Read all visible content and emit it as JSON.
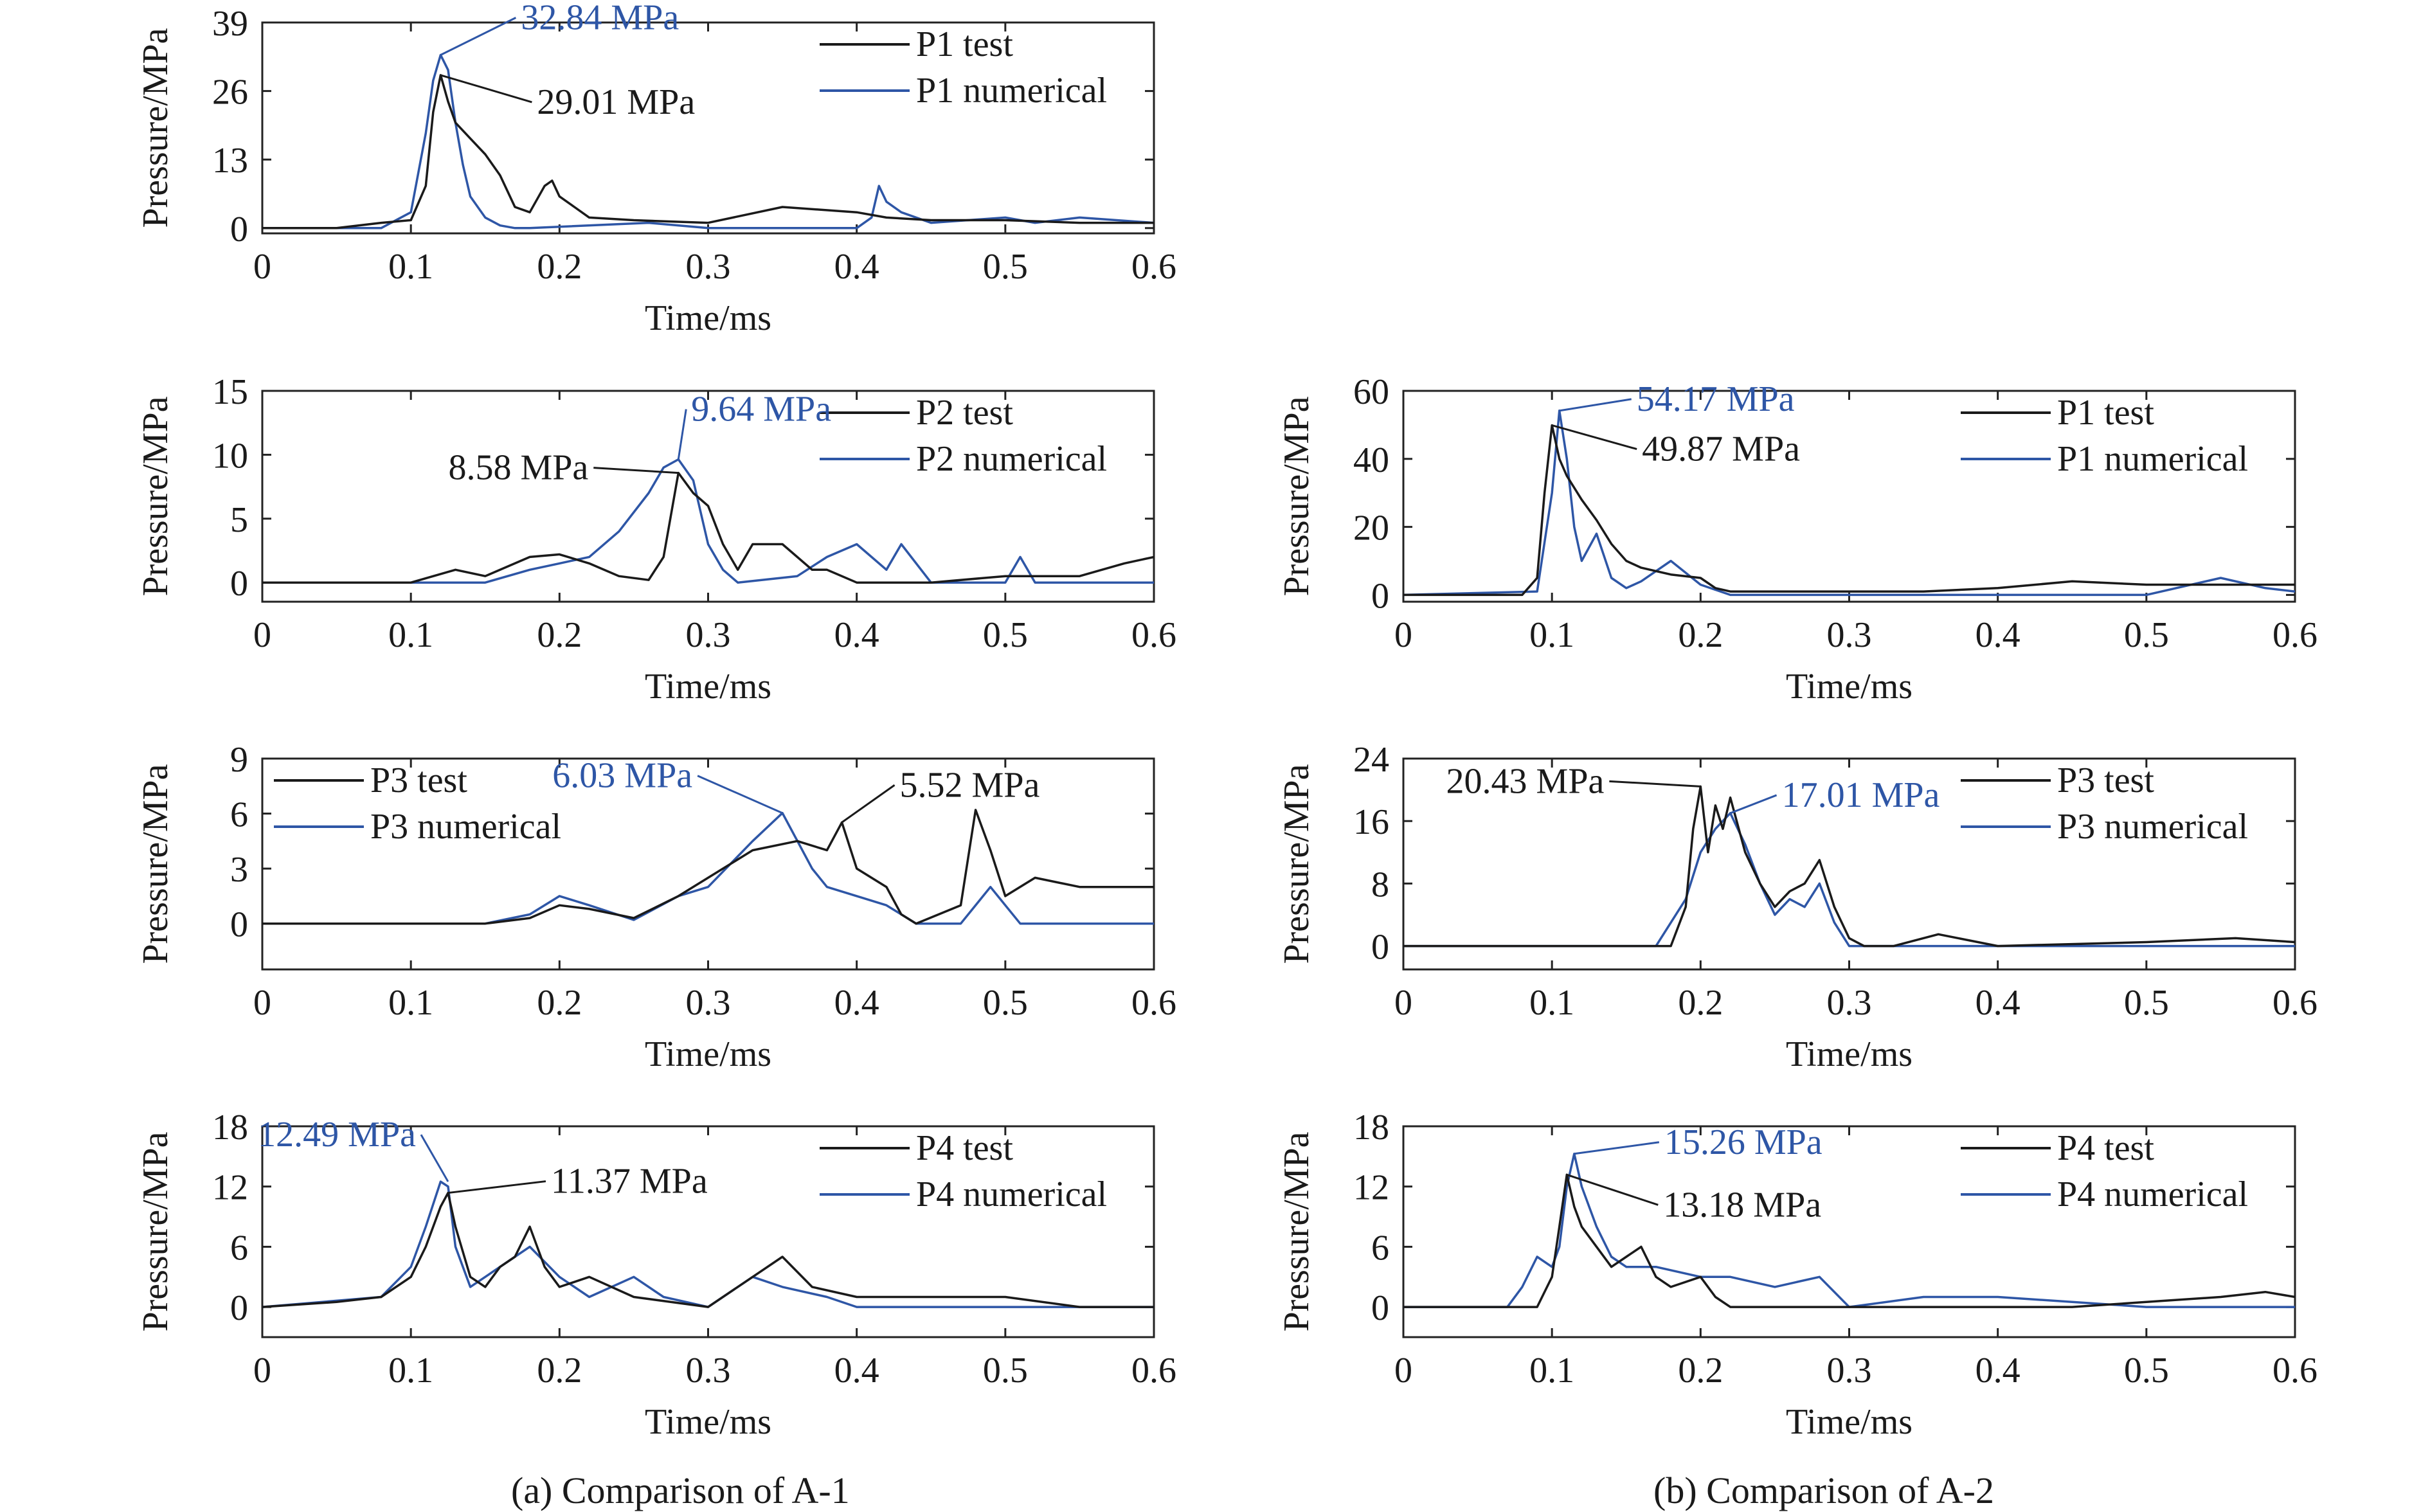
{
  "captions": {
    "left": "(a) Comparison of A-1",
    "right": "(b) Comparison of A-2"
  },
  "colors": {
    "test": "#1a1a1a",
    "numerical": "#2e56a6"
  },
  "chart_data": [
    {
      "id": "a1-p1",
      "type": "line",
      "xlabel": "Time/ms",
      "ylabel": "Pressure/MPa",
      "xlim": [
        0,
        0.6
      ],
      "ylim": [
        -1,
        39
      ],
      "xticks": [
        0,
        0.1,
        0.2,
        0.3,
        0.4,
        0.5,
        0.6
      ],
      "yticks": [
        0,
        13,
        26,
        39
      ],
      "legend_position": "top-right",
      "series": [
        {
          "name": "P1 test",
          "kind": "test",
          "x": [
            0,
            0.05,
            0.08,
            0.1,
            0.11,
            0.115,
            0.12,
            0.125,
            0.13,
            0.14,
            0.15,
            0.16,
            0.17,
            0.18,
            0.19,
            0.195,
            0.2,
            0.21,
            0.22,
            0.25,
            0.3,
            0.35,
            0.4,
            0.42,
            0.45,
            0.5,
            0.55,
            0.6
          ],
          "y": [
            0,
            0,
            1,
            1.5,
            8,
            22,
            29.01,
            24,
            20,
            17,
            14,
            10,
            4,
            3,
            8,
            9,
            6,
            4,
            2,
            1.5,
            1,
            4,
            3,
            2,
            1.5,
            1.5,
            1,
            1
          ]
        },
        {
          "name": "P1 numerical",
          "kind": "numerical",
          "x": [
            0,
            0.08,
            0.1,
            0.11,
            0.115,
            0.12,
            0.125,
            0.13,
            0.135,
            0.14,
            0.15,
            0.16,
            0.17,
            0.18,
            0.26,
            0.3,
            0.35,
            0.4,
            0.41,
            0.415,
            0.42,
            0.43,
            0.45,
            0.5,
            0.52,
            0.55,
            0.6
          ],
          "y": [
            0,
            0,
            3,
            18,
            28,
            32.84,
            30,
            20,
            12,
            6,
            2,
            0.5,
            0,
            0,
            1,
            0,
            0,
            0,
            2,
            8,
            5,
            3,
            1,
            2,
            1,
            2,
            1
          ]
        }
      ],
      "annotations": [
        {
          "text": "32.84 MPa",
          "kind": "numerical",
          "x": 0.12,
          "y": 32.84
        },
        {
          "text": "29.01 MPa",
          "kind": "test",
          "x": 0.12,
          "y": 29.01
        }
      ]
    },
    {
      "id": "a1-p2",
      "type": "line",
      "xlabel": "Time/ms",
      "ylabel": "Pressure/MPa",
      "xlim": [
        0,
        0.6
      ],
      "ylim": [
        -1.5,
        15
      ],
      "xticks": [
        0,
        0.1,
        0.2,
        0.3,
        0.4,
        0.5,
        0.6
      ],
      "yticks": [
        0,
        5,
        10,
        15
      ],
      "legend_position": "top-right",
      "series": [
        {
          "name": "P2 test",
          "kind": "test",
          "x": [
            0,
            0.1,
            0.13,
            0.15,
            0.18,
            0.2,
            0.22,
            0.24,
            0.26,
            0.27,
            0.28,
            0.29,
            0.3,
            0.31,
            0.32,
            0.33,
            0.35,
            0.37,
            0.38,
            0.4,
            0.45,
            0.5,
            0.55,
            0.58,
            0.6
          ],
          "y": [
            0,
            0,
            1,
            0.5,
            2,
            2.2,
            1.5,
            0.5,
            0.2,
            2,
            8.58,
            7,
            6,
            3,
            1,
            3,
            3,
            1,
            1,
            0,
            0,
            0.5,
            0.5,
            1.5,
            2
          ]
        },
        {
          "name": "P2 numerical",
          "kind": "numerical",
          "x": [
            0,
            0.15,
            0.18,
            0.2,
            0.22,
            0.24,
            0.26,
            0.27,
            0.28,
            0.29,
            0.3,
            0.31,
            0.32,
            0.36,
            0.38,
            0.4,
            0.42,
            0.43,
            0.45,
            0.5,
            0.51,
            0.52,
            0.6
          ],
          "y": [
            0,
            0,
            1,
            1.5,
            2,
            4,
            7,
            9,
            9.64,
            8,
            3,
            1,
            0,
            0.5,
            2,
            3,
            1,
            3,
            0,
            0,
            2,
            0,
            0
          ]
        }
      ],
      "annotations": [
        {
          "text": "8.58 MPa",
          "kind": "test",
          "x": 0.28,
          "y": 8.58
        },
        {
          "text": "9.64 MPa",
          "kind": "numerical",
          "x": 0.28,
          "y": 9.64
        }
      ]
    },
    {
      "id": "a1-p3",
      "type": "line",
      "xlabel": "Time/ms",
      "ylabel": "Pressure/MPa",
      "xlim": [
        0,
        0.6
      ],
      "ylim": [
        -2.5,
        9
      ],
      "xticks": [
        0,
        0.1,
        0.2,
        0.3,
        0.4,
        0.5,
        0.6
      ],
      "yticks": [
        0,
        3,
        6,
        9
      ],
      "legend_position": "top-left",
      "series": [
        {
          "name": "P3 test",
          "kind": "test",
          "x": [
            0,
            0.15,
            0.18,
            0.2,
            0.22,
            0.25,
            0.28,
            0.3,
            0.33,
            0.36,
            0.38,
            0.39,
            0.4,
            0.42,
            0.43,
            0.44,
            0.47,
            0.48,
            0.49,
            0.5,
            0.52,
            0.55,
            0.6
          ],
          "y": [
            0,
            0,
            0.3,
            1,
            0.8,
            0.3,
            1.5,
            2.5,
            4,
            4.5,
            4,
            5.52,
            3,
            2,
            0.5,
            0,
            1,
            6.2,
            4,
            1.5,
            2.5,
            2,
            2
          ]
        },
        {
          "name": "P3 numerical",
          "kind": "numerical",
          "x": [
            0,
            0.15,
            0.18,
            0.2,
            0.22,
            0.25,
            0.28,
            0.3,
            0.33,
            0.35,
            0.37,
            0.38,
            0.4,
            0.42,
            0.44,
            0.47,
            0.49,
            0.5,
            0.51,
            0.52,
            0.55,
            0.6
          ],
          "y": [
            0,
            0,
            0.5,
            1.5,
            1,
            0.2,
            1.5,
            2,
            4.5,
            6.03,
            3,
            2,
            1.5,
            1,
            0,
            0,
            2,
            1,
            0,
            0,
            0,
            0
          ]
        }
      ],
      "annotations": [
        {
          "text": "6.03 MPa",
          "kind": "numerical",
          "x": 0.35,
          "y": 6.03
        },
        {
          "text": "5.52 MPa",
          "kind": "test",
          "x": 0.39,
          "y": 5.52
        }
      ]
    },
    {
      "id": "a1-p4",
      "type": "line",
      "xlabel": "Time/ms",
      "ylabel": "Pressure/MPa",
      "xlim": [
        0,
        0.6
      ],
      "ylim": [
        -3,
        18
      ],
      "xticks": [
        0,
        0.1,
        0.2,
        0.3,
        0.4,
        0.5,
        0.6
      ],
      "yticks": [
        0,
        6,
        12,
        18
      ],
      "legend_position": "top-right",
      "series": [
        {
          "name": "P4 test",
          "kind": "test",
          "x": [
            0,
            0.05,
            0.08,
            0.1,
            0.11,
            0.12,
            0.125,
            0.13,
            0.14,
            0.15,
            0.16,
            0.17,
            0.18,
            0.19,
            0.2,
            0.22,
            0.25,
            0.3,
            0.33,
            0.35,
            0.37,
            0.4,
            0.45,
            0.5,
            0.55,
            0.6
          ],
          "y": [
            0,
            0.5,
            1,
            3,
            6,
            10,
            11.37,
            8,
            3,
            2,
            4,
            5,
            8,
            4,
            2,
            3,
            1,
            0,
            3,
            5,
            2,
            1,
            1,
            1,
            0,
            0
          ]
        },
        {
          "name": "P4 numerical",
          "kind": "numerical",
          "x": [
            0,
            0.08,
            0.1,
            0.11,
            0.12,
            0.125,
            0.13,
            0.14,
            0.15,
            0.17,
            0.18,
            0.2,
            0.22,
            0.25,
            0.27,
            0.3,
            0.33,
            0.35,
            0.38,
            0.4,
            0.5,
            0.6
          ],
          "y": [
            0,
            1,
            4,
            8,
            12.49,
            12,
            6,
            2,
            3,
            5,
            6,
            3,
            1,
            3,
            1,
            0,
            3,
            2,
            1,
            0,
            0,
            0
          ]
        }
      ],
      "annotations": [
        {
          "text": "12.49 MPa",
          "kind": "numerical",
          "x": 0.125,
          "y": 12.49
        },
        {
          "text": "11.37 MPa",
          "kind": "test",
          "x": 0.125,
          "y": 11.37
        }
      ]
    },
    {
      "id": "a2-p1",
      "type": "line",
      "xlabel": "Time/ms",
      "ylabel": "Pressure/MPa",
      "xlim": [
        0,
        0.6
      ],
      "ylim": [
        -2,
        60
      ],
      "xticks": [
        0,
        0.1,
        0.2,
        0.3,
        0.4,
        0.5,
        0.6
      ],
      "yticks": [
        0,
        20,
        40,
        60
      ],
      "legend_position": "top-right",
      "series": [
        {
          "name": "P1 test",
          "kind": "test",
          "x": [
            0,
            0.08,
            0.09,
            0.095,
            0.1,
            0.105,
            0.11,
            0.12,
            0.13,
            0.14,
            0.15,
            0.16,
            0.18,
            0.2,
            0.21,
            0.22,
            0.25,
            0.3,
            0.35,
            0.4,
            0.45,
            0.5,
            0.55,
            0.6
          ],
          "y": [
            0,
            0,
            5,
            30,
            49.87,
            40,
            35,
            28,
            22,
            15,
            10,
            8,
            6,
            5,
            2,
            1,
            1,
            1,
            1,
            2,
            4,
            3,
            3,
            3
          ]
        },
        {
          "name": "P1 numerical",
          "kind": "numerical",
          "x": [
            0,
            0.09,
            0.1,
            0.105,
            0.11,
            0.115,
            0.12,
            0.13,
            0.14,
            0.15,
            0.16,
            0.18,
            0.2,
            0.22,
            0.3,
            0.4,
            0.5,
            0.55,
            0.58,
            0.6
          ],
          "y": [
            0,
            1,
            30,
            54.17,
            40,
            20,
            10,
            18,
            5,
            2,
            4,
            10,
            3,
            0,
            0,
            0,
            0,
            5,
            2,
            1
          ]
        }
      ],
      "annotations": [
        {
          "text": "54.17 MPa",
          "kind": "numerical",
          "x": 0.105,
          "y": 54.17
        },
        {
          "text": "49.87 MPa",
          "kind": "test",
          "x": 0.1,
          "y": 49.87
        }
      ]
    },
    {
      "id": "a2-p3",
      "type": "line",
      "xlabel": "Time/ms",
      "ylabel": "Pressure/MPa",
      "xlim": [
        0,
        0.6
      ],
      "ylim": [
        -3,
        24
      ],
      "xticks": [
        0,
        0.1,
        0.2,
        0.3,
        0.4,
        0.5,
        0.6
      ],
      "yticks": [
        0,
        8,
        16,
        24
      ],
      "legend_position": "top-right",
      "series": [
        {
          "name": "P3 test",
          "kind": "test",
          "x": [
            0,
            0.18,
            0.19,
            0.195,
            0.2,
            0.205,
            0.21,
            0.215,
            0.22,
            0.23,
            0.24,
            0.25,
            0.26,
            0.27,
            0.28,
            0.29,
            0.3,
            0.31,
            0.33,
            0.36,
            0.4,
            0.5,
            0.56,
            0.6
          ],
          "y": [
            0,
            0,
            5,
            15,
            20.43,
            12,
            18,
            15,
            19,
            12,
            8,
            5,
            7,
            8,
            11,
            5,
            1,
            0,
            0,
            1.5,
            0,
            0.5,
            1,
            0.5
          ]
        },
        {
          "name": "P3 numerical",
          "kind": "numerical",
          "x": [
            0,
            0.17,
            0.19,
            0.2,
            0.21,
            0.22,
            0.23,
            0.24,
            0.25,
            0.26,
            0.27,
            0.28,
            0.29,
            0.3,
            0.35,
            0.4,
            0.5,
            0.6
          ],
          "y": [
            0,
            0,
            6,
            12,
            15,
            17.01,
            13,
            8,
            4,
            6,
            5,
            8,
            3,
            0,
            0,
            0,
            0,
            0
          ]
        }
      ],
      "annotations": [
        {
          "text": "20.43 MPa",
          "kind": "test",
          "x": 0.2,
          "y": 20.43
        },
        {
          "text": "17.01 MPa",
          "kind": "numerical",
          "x": 0.22,
          "y": 17.01
        }
      ]
    },
    {
      "id": "a2-p4",
      "type": "line",
      "xlabel": "Time/ms",
      "ylabel": "Pressure/MPa",
      "xlim": [
        0,
        0.6
      ],
      "ylim": [
        -3,
        18
      ],
      "xticks": [
        0,
        0.1,
        0.2,
        0.3,
        0.4,
        0.5,
        0.6
      ],
      "yticks": [
        0,
        6,
        12,
        18
      ],
      "legend_position": "top-right",
      "series": [
        {
          "name": "P4 test",
          "kind": "test",
          "x": [
            0,
            0.09,
            0.1,
            0.105,
            0.11,
            0.115,
            0.12,
            0.13,
            0.14,
            0.15,
            0.16,
            0.17,
            0.18,
            0.2,
            0.21,
            0.22,
            0.25,
            0.3,
            0.35,
            0.4,
            0.45,
            0.5,
            0.55,
            0.58,
            0.6
          ],
          "y": [
            0,
            0,
            3,
            8,
            13.18,
            10,
            8,
            6,
            4,
            5,
            6,
            3,
            2,
            3,
            1,
            0,
            0,
            0,
            0,
            0,
            0,
            0.5,
            1,
            1.5,
            1
          ]
        },
        {
          "name": "P4 numerical",
          "kind": "numerical",
          "x": [
            0,
            0.07,
            0.08,
            0.09,
            0.1,
            0.105,
            0.11,
            0.115,
            0.12,
            0.13,
            0.14,
            0.15,
            0.17,
            0.2,
            0.22,
            0.25,
            0.28,
            0.3,
            0.35,
            0.4,
            0.45,
            0.5,
            0.6
          ],
          "y": [
            0,
            0,
            2,
            5,
            4,
            6,
            12,
            15.26,
            12,
            8,
            5,
            4,
            4,
            3,
            3,
            2,
            3,
            0,
            1,
            1,
            0.5,
            0,
            0
          ]
        }
      ],
      "annotations": [
        {
          "text": "15.26 MPa",
          "kind": "numerical",
          "x": 0.115,
          "y": 15.26
        },
        {
          "text": "13.18 MPa",
          "kind": "test",
          "x": 0.11,
          "y": 13.18
        }
      ]
    }
  ]
}
